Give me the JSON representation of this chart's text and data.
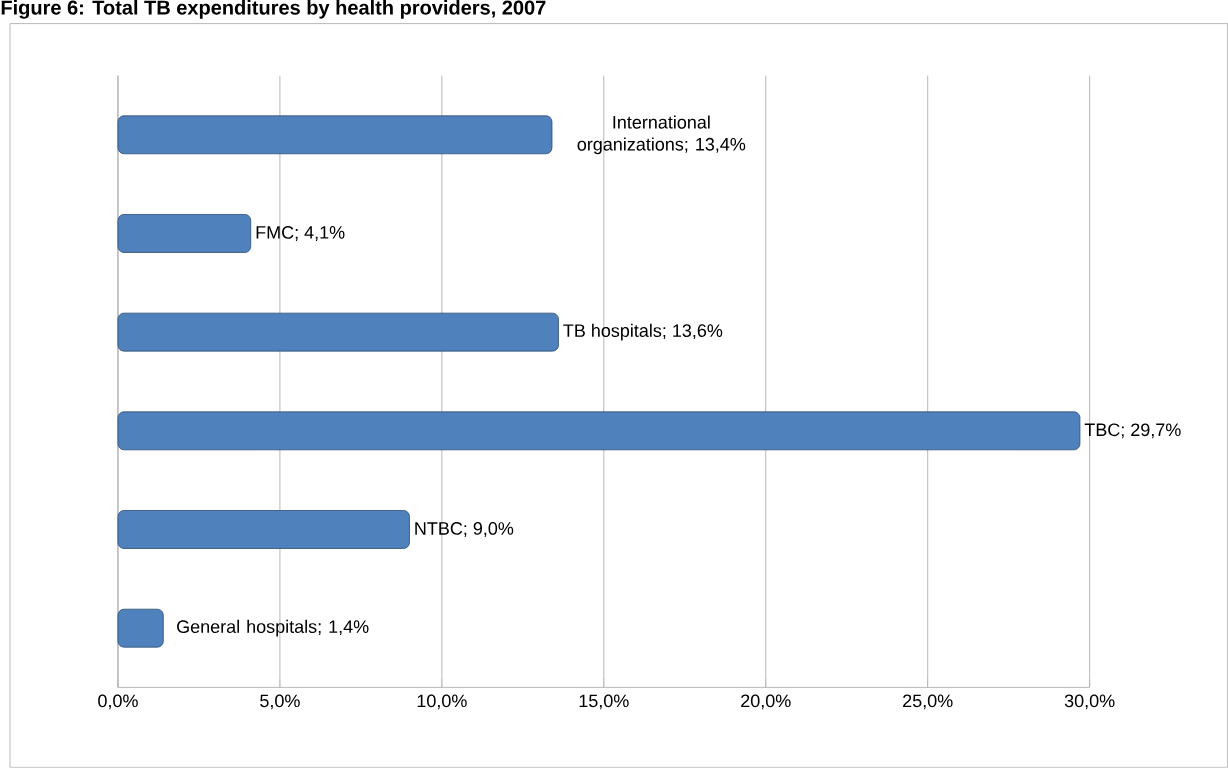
{
  "chart_data": {
    "type": "bar",
    "orientation": "horizontal",
    "title": "Figure 6: Total TB expenditures by health providers, 2007",
    "categories": [
      null,
      null,
      null,
      null,
      null,
      null
    ],
    "values": [
      13.4,
      4.1,
      13.6,
      29.7,
      9.0,
      1.4
    ],
    "value_labels": [
      "International organizations; 13,4%",
      "FMC; 4,1%",
      "TB hospitals; 13,6%",
      "TBC; 29,7%",
      "NTBC; 9,0%",
      "General hospitals; 1,4%"
    ],
    "color": "#4f81bd",
    "xlim": [
      0,
      30
    ],
    "xticks": [
      {
        "value": 0,
        "label": "0,0%"
      },
      {
        "value": 5,
        "label": "5,0%"
      },
      {
        "value": 10,
        "label": "10,0%"
      },
      {
        "value": 15,
        "label": "15,0%"
      },
      {
        "value": 20,
        "label": "20,0%"
      },
      {
        "value": 25,
        "label": "25,0%"
      },
      {
        "value": 30,
        "label": "30,0%"
      }
    ],
    "grid": "x"
  }
}
